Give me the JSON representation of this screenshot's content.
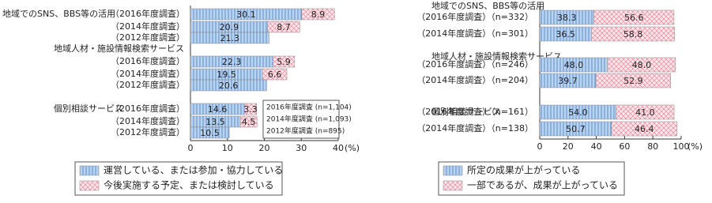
{
  "chart_data": [
    {
      "type": "stacked-bar",
      "groups": [
        {
          "label": "地域でのSNS、BBS等の活用",
          "categories": [
            "（2016年度調査）",
            "（2014年度調査）",
            "（2012年度調査）"
          ]
        },
        {
          "label": "地域人材・施設情報検索サービス",
          "categories": [
            "（2016年度調査）",
            "（2014年度調査）",
            "（2012年度調査）"
          ]
        },
        {
          "label": "個別相談サービス",
          "categories": [
            "（2016年度調査）",
            "（2014年度調査）",
            "（2012年度調査）"
          ]
        }
      ],
      "series": [
        {
          "name": "運営している、または参加・協力している",
          "color": "#bcd3ee",
          "values": [
            30.1,
            20.9,
            21.3,
            22.3,
            19.5,
            20.6,
            14.6,
            13.5,
            10.5
          ]
        },
        {
          "name": "今後実施する予定、または検討している",
          "color": "#f9d5dc",
          "values": [
            8.9,
            8.7,
            null,
            5.9,
            6.6,
            null,
            3.3,
            4.5,
            null
          ]
        }
      ],
      "xlim": [
        0,
        40
      ],
      "xticks": [
        0,
        10,
        20,
        30,
        40
      ],
      "x_unit": "(%)",
      "annotations": [
        "2016年度調査 (n=1,104)",
        "2014年度調査 (n=1,093)",
        "2012年度調査 (n=895)"
      ]
    },
    {
      "type": "stacked-bar",
      "groups": [
        {
          "label": "地域でのSNS、BBS等の活用",
          "categories": [
            "（2016年度調査）（n=332）",
            "（2014年度調査）（n=301）"
          ]
        },
        {
          "label": "地域人材・施設情報検索サービス",
          "categories": [
            "（2016年度調査）（n=246）",
            "（2014年度調査）（n=204）"
          ]
        },
        {
          "label": "個別相談サービス",
          "categories": [
            "（2016年度調査）（n=161）",
            "（2014年度調査）（n=138）"
          ]
        }
      ],
      "series": [
        {
          "name": "所定の成果が上がっている",
          "color": "#bcd3ee",
          "values": [
            38.3,
            36.5,
            48,
            39.7,
            54,
            50.7
          ],
          "value_labels": [
            "38.3",
            "36.5",
            "48.0",
            "39.7",
            "54.0",
            "50.7"
          ]
        },
        {
          "name": "一部であるが、成果が上がっている",
          "color": "#f9d5dc",
          "values": [
            56.6,
            58.8,
            48,
            52.9,
            41,
            46.4
          ],
          "value_labels": [
            "56.6",
            "58.8",
            "48.0",
            "52.9",
            "41.0",
            "46.4"
          ]
        }
      ],
      "xlim": [
        0,
        100
      ],
      "xticks": [
        0,
        20,
        40,
        60,
        80,
        100
      ],
      "x_unit": "(%)"
    }
  ]
}
